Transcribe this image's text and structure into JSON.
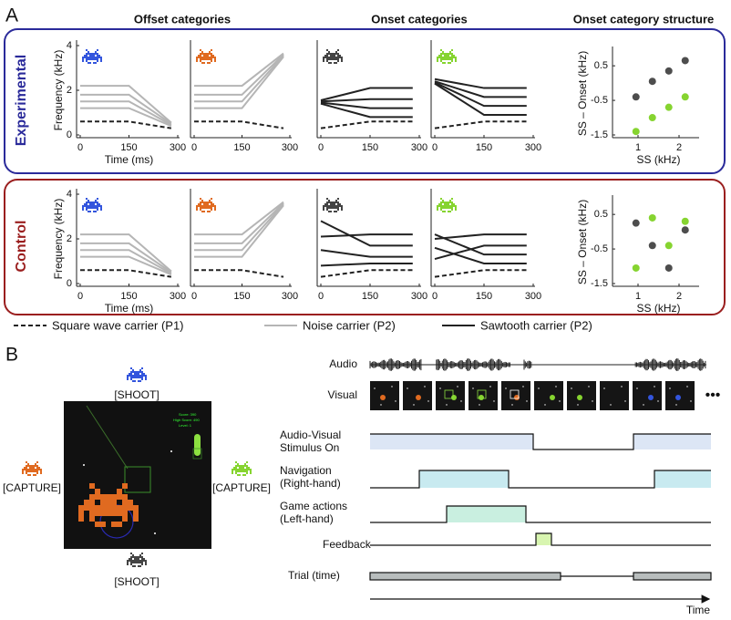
{
  "panel_labels": [
    "A",
    "B"
  ],
  "panel_a": {
    "column_headers": [
      "Offset categories",
      "Onset categories",
      "Onset category structure"
    ],
    "row_labels": [
      "Experimental",
      "Control"
    ],
    "legend": [
      {
        "name": "Square wave carrier (P1)",
        "color": "#222222",
        "dash": true
      },
      {
        "name": "Noise carrier (P2)",
        "color": "#b5b5b5",
        "dash": false
      },
      {
        "name": "Sawtooth carrier (P2)",
        "color": "#222222",
        "dash": false
      }
    ]
  },
  "chart_data": [
    {
      "type": "line",
      "x": [
        0,
        150,
        280
      ],
      "xlim": [
        0,
        300
      ],
      "xticks": [
        0,
        150,
        300
      ],
      "ylim": [
        0,
        4
      ],
      "yticks": [
        0,
        2,
        4
      ],
      "xlabel": "Time (ms)",
      "ylabel": "Frequency (kHz)",
      "series": [
        {
          "color": "#222222",
          "dash": true,
          "values": [
            0.6,
            0.6,
            0.3
          ]
        },
        {
          "color": "#b5b5b5",
          "values": [
            1.2,
            1.2,
            0.4
          ]
        },
        {
          "color": "#b5b5b5",
          "values": [
            1.5,
            1.5,
            0.45
          ]
        },
        {
          "color": "#b5b5b5",
          "values": [
            1.8,
            1.8,
            0.5
          ]
        },
        {
          "color": "#b5b5b5",
          "values": [
            2.2,
            2.2,
            0.55
          ]
        }
      ]
    },
    {
      "type": "line",
      "x": [
        0,
        150,
        280
      ],
      "xlim": [
        0,
        300
      ],
      "xticks": [
        0,
        150,
        300
      ],
      "ylim": [
        0,
        4
      ],
      "series": [
        {
          "color": "#222222",
          "dash": true,
          "values": [
            0.6,
            0.6,
            0.3
          ]
        },
        {
          "color": "#b5b5b5",
          "values": [
            1.2,
            1.2,
            3.5
          ]
        },
        {
          "color": "#b5b5b5",
          "values": [
            1.5,
            1.5,
            3.55
          ]
        },
        {
          "color": "#b5b5b5",
          "values": [
            1.8,
            1.8,
            3.6
          ]
        },
        {
          "color": "#b5b5b5",
          "values": [
            2.2,
            2.2,
            3.65
          ]
        }
      ]
    },
    {
      "type": "line",
      "x": [
        0,
        150,
        280
      ],
      "xlim": [
        0,
        300
      ],
      "xticks": [
        0,
        150,
        300
      ],
      "ylim": [
        0,
        4
      ],
      "series": [
        {
          "color": "#222222",
          "dash": true,
          "values": [
            0.3,
            0.6,
            0.6
          ]
        },
        {
          "color": "#222222",
          "values": [
            1.4,
            0.8,
            0.8
          ]
        },
        {
          "color": "#222222",
          "values": [
            1.45,
            1.2,
            1.2
          ]
        },
        {
          "color": "#222222",
          "values": [
            1.5,
            1.6,
            1.6
          ]
        },
        {
          "color": "#222222",
          "values": [
            1.55,
            2.1,
            2.1
          ]
        }
      ]
    },
    {
      "type": "line",
      "x": [
        0,
        150,
        280
      ],
      "xlim": [
        0,
        300
      ],
      "xticks": [
        0,
        150,
        300
      ],
      "ylim": [
        0,
        4
      ],
      "series": [
        {
          "color": "#222222",
          "dash": true,
          "values": [
            0.3,
            0.6,
            0.6
          ]
        },
        {
          "color": "#222222",
          "values": [
            2.3,
            0.9,
            0.9
          ]
        },
        {
          "color": "#222222",
          "values": [
            2.35,
            1.3,
            1.3
          ]
        },
        {
          "color": "#222222",
          "values": [
            2.4,
            1.7,
            1.7
          ]
        },
        {
          "color": "#222222",
          "values": [
            2.5,
            2.1,
            2.1
          ]
        }
      ]
    },
    {
      "type": "scatter",
      "xlim": [
        0.6,
        2.4
      ],
      "xticks": [
        1,
        2
      ],
      "ylim": [
        -1.5,
        0.9
      ],
      "yticks": [
        0.5,
        -0.5,
        -1.5
      ],
      "xlabel": "SS (kHz)",
      "ylabel": "SS – Onset (kHz)",
      "series": [
        {
          "color": "#4d4d4d",
          "x": [
            0.95,
            1.35,
            1.75,
            2.15
          ],
          "values": [
            -0.4,
            0.05,
            0.35,
            0.65
          ]
        },
        {
          "color": "#86d430",
          "x": [
            0.95,
            1.35,
            1.75,
            2.15
          ],
          "values": [
            -1.4,
            -1.0,
            -0.7,
            -0.4
          ]
        }
      ]
    },
    {
      "type": "line",
      "x": [
        0,
        150,
        280
      ],
      "xlim": [
        0,
        300
      ],
      "xticks": [
        0,
        150,
        300
      ],
      "ylim": [
        0,
        4
      ],
      "yticks": [
        0,
        2,
        4
      ],
      "xlabel": "Time (ms)",
      "ylabel": "Frequency (kHz)",
      "series": [
        {
          "color": "#222222",
          "dash": true,
          "values": [
            0.6,
            0.6,
            0.3
          ]
        },
        {
          "color": "#b5b5b5",
          "values": [
            1.2,
            1.2,
            0.4
          ]
        },
        {
          "color": "#b5b5b5",
          "values": [
            1.5,
            1.5,
            0.45
          ]
        },
        {
          "color": "#b5b5b5",
          "values": [
            1.8,
            1.8,
            0.5
          ]
        },
        {
          "color": "#b5b5b5",
          "values": [
            2.2,
            2.2,
            0.55
          ]
        }
      ]
    },
    {
      "type": "line",
      "x": [
        0,
        150,
        280
      ],
      "xlim": [
        0,
        300
      ],
      "xticks": [
        0,
        150,
        300
      ],
      "ylim": [
        0,
        4
      ],
      "series": [
        {
          "color": "#222222",
          "dash": true,
          "values": [
            0.6,
            0.6,
            0.3
          ]
        },
        {
          "color": "#b5b5b5",
          "values": [
            1.2,
            1.2,
            3.5
          ]
        },
        {
          "color": "#b5b5b5",
          "values": [
            1.5,
            1.5,
            3.55
          ]
        },
        {
          "color": "#b5b5b5",
          "values": [
            1.8,
            1.8,
            3.6
          ]
        },
        {
          "color": "#b5b5b5",
          "values": [
            2.2,
            2.2,
            3.65
          ]
        }
      ]
    },
    {
      "type": "line",
      "x": [
        0,
        150,
        280
      ],
      "xlim": [
        0,
        300
      ],
      "xticks": [
        0,
        150,
        300
      ],
      "ylim": [
        0,
        4
      ],
      "series": [
        {
          "color": "#222222",
          "dash": true,
          "values": [
            0.3,
            0.6,
            0.6
          ]
        },
        {
          "color": "#222222",
          "values": [
            2.8,
            1.7,
            1.7
          ]
        },
        {
          "color": "#222222",
          "values": [
            2.1,
            2.2,
            2.2
          ]
        },
        {
          "color": "#222222",
          "values": [
            1.5,
            1.2,
            1.2
          ]
        },
        {
          "color": "#222222",
          "values": [
            0.8,
            0.9,
            0.9
          ]
        }
      ]
    },
    {
      "type": "line",
      "x": [
        0,
        150,
        280
      ],
      "xlim": [
        0,
        300
      ],
      "xticks": [
        0,
        150,
        300
      ],
      "ylim": [
        0,
        4
      ],
      "series": [
        {
          "color": "#222222",
          "dash": true,
          "values": [
            0.3,
            0.6,
            0.6
          ]
        },
        {
          "color": "#222222",
          "values": [
            2.2,
            1.3,
            1.3
          ]
        },
        {
          "color": "#222222",
          "values": [
            2.0,
            2.2,
            2.2
          ]
        },
        {
          "color": "#222222",
          "values": [
            1.6,
            0.9,
            0.9
          ]
        },
        {
          "color": "#222222",
          "values": [
            1.1,
            1.7,
            1.7
          ]
        }
      ]
    },
    {
      "type": "scatter",
      "xlim": [
        0.6,
        2.4
      ],
      "xticks": [
        1,
        2
      ],
      "ylim": [
        -1.5,
        0.9
      ],
      "yticks": [
        0.5,
        -0.5,
        -1.5
      ],
      "xlabel": "SS (kHz)",
      "ylabel": "SS – Onset (kHz)",
      "series": [
        {
          "color": "#4d4d4d",
          "x": [
            0.95,
            1.35,
            1.75,
            2.15
          ],
          "values": [
            0.25,
            -0.4,
            -1.05,
            0.05
          ]
        },
        {
          "color": "#86d430",
          "x": [
            0.95,
            1.35,
            1.75,
            2.15
          ],
          "values": [
            -1.05,
            0.4,
            -0.4,
            0.3
          ]
        }
      ]
    }
  ],
  "panel_b": {
    "game_labels": [
      "[SHOOT]",
      "[CAPTURE]",
      "[CAPTURE]",
      "[SHOOT]"
    ],
    "hud": [
      "Score: 390",
      "High Score: 490",
      "Level: 1"
    ],
    "timeline_labels": [
      [
        "Audio"
      ],
      [
        "Visual"
      ],
      [
        "Audio-Visual",
        "Stimulus On"
      ],
      [
        "Navigation",
        "(Right-hand)"
      ],
      [
        "Game actions",
        "(Left-hand)"
      ],
      [
        "Feedback"
      ],
      [
        "Trial (time)"
      ]
    ],
    "time_axis": "Time"
  }
}
